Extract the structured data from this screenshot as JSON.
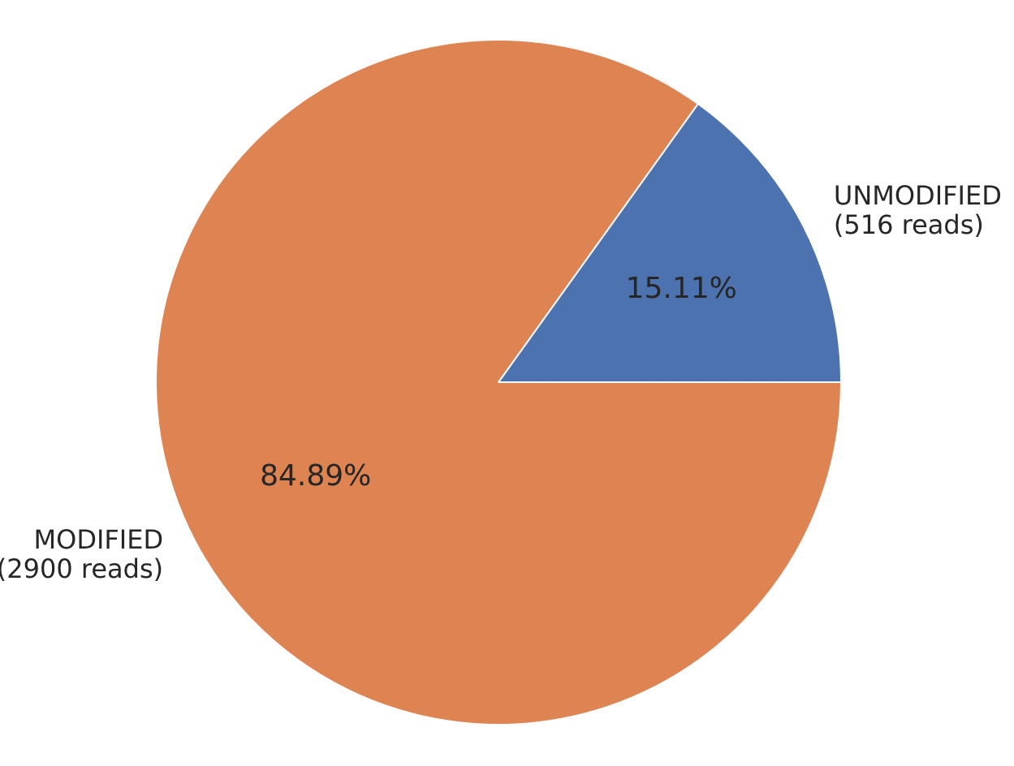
{
  "chart_data": {
    "type": "pie",
    "start_angle_deg": 0,
    "direction": "counterclockwise",
    "slices": [
      {
        "label_lines": [
          "UNMODIFIED",
          "(516 reads)"
        ],
        "value": 516,
        "percent_label": "15.11%",
        "color": "#4c72b0"
      },
      {
        "label_lines": [
          "MODIFIED",
          "(2900 reads)"
        ],
        "value": 2900,
        "percent_label": "84.89%",
        "color": "#dd8452"
      }
    ]
  }
}
